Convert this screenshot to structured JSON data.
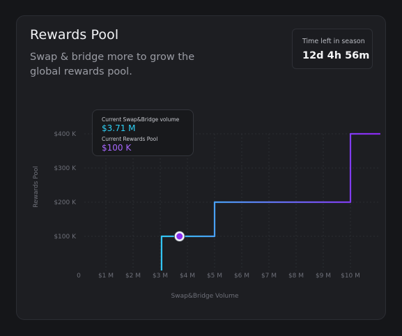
{
  "card": {
    "title": "Rewards Pool",
    "subtitle": "Swap & bridge more to grow the global rewards pool."
  },
  "timer": {
    "label": "Time left in season",
    "value": "12d 4h 56m"
  },
  "tooltip": {
    "volume_label": "Current Swap&Bridge volume",
    "volume_value": "$3.71 M",
    "pool_label": "Current Rewards Pool",
    "pool_value": "$100 K"
  },
  "colors": {
    "line_start": "#2ed0f5",
    "line_end": "#8a2bf0",
    "volume_accent": "#2ed0f5",
    "pool_accent": "#a867ff"
  },
  "chart_data": {
    "type": "line",
    "step": true,
    "xlabel": "Swap&Bridge Volume",
    "ylabel": "Rewards Pool",
    "x_ticks": [
      "0",
      "$1 M",
      "$2 M",
      "$3 M",
      "$4 M",
      "$5 M",
      "$6 M",
      "$7 M",
      "$8 M",
      "$9 M",
      "$10 M"
    ],
    "x_tick_values": [
      0,
      1,
      2,
      3,
      4,
      5,
      6,
      7,
      8,
      9,
      10
    ],
    "y_ticks": [
      "$100 K",
      "$200 K",
      "$300 K",
      "$400 K"
    ],
    "y_tick_values": [
      100,
      200,
      300,
      400
    ],
    "xlim": [
      0,
      11.1
    ],
    "ylim": [
      0,
      400
    ],
    "grid": true,
    "series": [
      {
        "x": [
          3.05,
          3.05,
          5.0,
          5.0,
          10.0,
          10.0,
          11.1
        ],
        "y": [
          0,
          100,
          100,
          200,
          200,
          400,
          400
        ]
      }
    ],
    "current_point": {
      "x": 3.71,
      "y": 100
    }
  }
}
